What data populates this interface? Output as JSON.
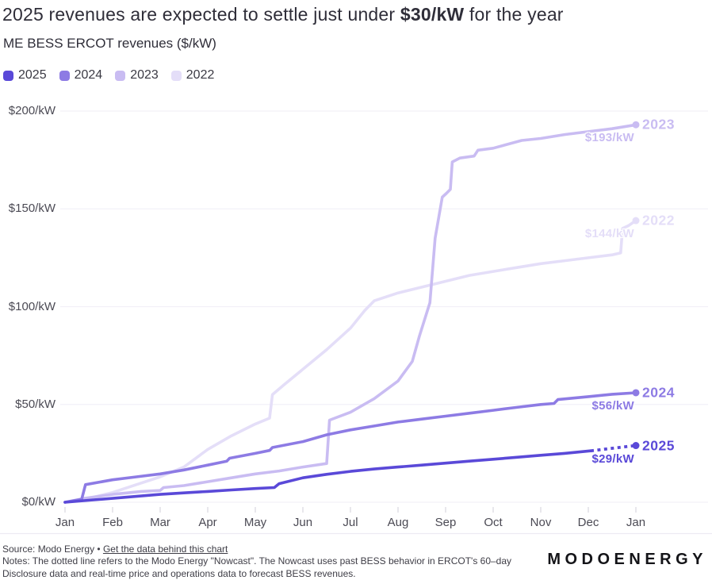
{
  "chart_data": {
    "type": "line",
    "title": {
      "prefix": "2025 revenues are expected to settle just under ",
      "highlight": "$30/kW",
      "suffix": " for the year"
    },
    "subtitle": "ME BESS ERCOT revenues ($/kW)",
    "x_unit": "month (0 = Jan, 12 = following Jan)",
    "x_ticks": [
      "Jan",
      "Feb",
      "Mar",
      "Apr",
      "May",
      "Jun",
      "Jul",
      "Aug",
      "Sep",
      "Oct",
      "Nov",
      "Dec",
      "Jan"
    ],
    "y_ticks": [
      {
        "value": 0,
        "label": "$0/kW"
      },
      {
        "value": 50,
        "label": "$50/kW"
      },
      {
        "value": 100,
        "label": "$100/kW"
      },
      {
        "value": 150,
        "label": "$150/kW"
      },
      {
        "value": 200,
        "label": "$200/kW"
      }
    ],
    "xlim": [
      0,
      12
    ],
    "ylim": [
      0,
      200
    ],
    "grid": "horizontal",
    "legend_position": "top-left",
    "series": [
      {
        "name": "2022",
        "color": "#e4def8",
        "end_value": 144,
        "end_value_label": "$144/kW",
        "points": [
          [
            0,
            0
          ],
          [
            0.5,
            2
          ],
          [
            1,
            5
          ],
          [
            1.5,
            9
          ],
          [
            2,
            13
          ],
          [
            2.5,
            18
          ],
          [
            3,
            27
          ],
          [
            3.5,
            34
          ],
          [
            4,
            40
          ],
          [
            4.3,
            43
          ],
          [
            4.36,
            55
          ],
          [
            4.6,
            60
          ],
          [
            5,
            68
          ],
          [
            5.5,
            78
          ],
          [
            6,
            89
          ],
          [
            6.3,
            98
          ],
          [
            6.5,
            103
          ],
          [
            7,
            107
          ],
          [
            7.5,
            110
          ],
          [
            8,
            113
          ],
          [
            8.5,
            116
          ],
          [
            9,
            118
          ],
          [
            9.5,
            120
          ],
          [
            10,
            122
          ],
          [
            10.5,
            123.5
          ],
          [
            11,
            125
          ],
          [
            11.5,
            126.5
          ],
          [
            11.68,
            127.5
          ],
          [
            11.72,
            140
          ],
          [
            11.85,
            141.5
          ],
          [
            12,
            144
          ]
        ]
      },
      {
        "name": "2023",
        "color": "#c9bcf2",
        "end_value": 193,
        "end_value_label": "$193/kW",
        "points": [
          [
            0,
            0
          ],
          [
            0.4,
            2
          ],
          [
            1,
            4
          ],
          [
            1.6,
            5.5
          ],
          [
            2,
            6
          ],
          [
            2.07,
            7.5
          ],
          [
            2.5,
            8.5
          ],
          [
            3,
            10.5
          ],
          [
            3.5,
            12.5
          ],
          [
            4,
            14.5
          ],
          [
            4.5,
            16
          ],
          [
            5,
            18
          ],
          [
            5.5,
            19.8
          ],
          [
            5.56,
            42
          ],
          [
            6,
            46
          ],
          [
            6.5,
            53
          ],
          [
            7,
            62
          ],
          [
            7.3,
            72
          ],
          [
            7.45,
            85
          ],
          [
            7.67,
            102
          ],
          [
            7.78,
            135
          ],
          [
            7.93,
            156
          ],
          [
            8.02,
            158
          ],
          [
            8.1,
            160
          ],
          [
            8.14,
            174
          ],
          [
            8.3,
            176
          ],
          [
            8.6,
            177
          ],
          [
            8.68,
            180
          ],
          [
            9,
            181
          ],
          [
            9.6,
            185
          ],
          [
            10,
            186
          ],
          [
            10.5,
            188
          ],
          [
            11,
            189.5
          ],
          [
            11.5,
            191
          ],
          [
            12,
            193
          ]
        ]
      },
      {
        "name": "2024",
        "color": "#8d7be4",
        "end_value": 56,
        "end_value_label": "$56/kW",
        "points": [
          [
            0,
            0
          ],
          [
            0.35,
            1.5
          ],
          [
            0.43,
            9
          ],
          [
            1,
            11.5
          ],
          [
            1.5,
            13
          ],
          [
            2,
            14.5
          ],
          [
            2.5,
            16.5
          ],
          [
            3,
            19
          ],
          [
            3.4,
            21
          ],
          [
            3.46,
            22.5
          ],
          [
            4,
            25
          ],
          [
            4.3,
            26.5
          ],
          [
            4.36,
            28
          ],
          [
            5,
            31
          ],
          [
            5.5,
            34.5
          ],
          [
            6,
            37
          ],
          [
            6.5,
            39
          ],
          [
            7,
            41
          ],
          [
            7.5,
            42.5
          ],
          [
            8,
            44
          ],
          [
            8.5,
            45.5
          ],
          [
            9,
            47
          ],
          [
            9.5,
            48.5
          ],
          [
            10,
            50
          ],
          [
            10.28,
            50.5
          ],
          [
            10.36,
            52.5
          ],
          [
            11,
            54
          ],
          [
            11.5,
            55.2
          ],
          [
            12,
            56
          ]
        ]
      },
      {
        "name": "2025",
        "color": "#5a49d8",
        "end_value": 29,
        "end_value_label": "$29/kW",
        "points": [
          [
            0,
            0
          ],
          [
            0.5,
            1
          ],
          [
            1,
            2
          ],
          [
            1.5,
            3
          ],
          [
            2,
            4
          ],
          [
            2.5,
            4.8
          ],
          [
            3,
            5.5
          ],
          [
            3.5,
            6.3
          ],
          [
            4,
            7
          ],
          [
            4.4,
            7.5
          ],
          [
            4.5,
            9.5
          ],
          [
            5,
            12.5
          ],
          [
            5.5,
            14.3
          ],
          [
            6,
            15.8
          ],
          [
            6.5,
            17
          ],
          [
            7,
            18
          ],
          [
            7.5,
            19
          ],
          [
            8,
            20
          ],
          [
            8.5,
            21
          ],
          [
            9,
            22
          ],
          [
            9.5,
            23
          ],
          [
            10,
            24
          ],
          [
            10.5,
            25
          ],
          [
            11.05,
            26.3
          ]
        ],
        "forecast_points": [
          [
            11.05,
            26.3
          ],
          [
            11.5,
            27.6
          ],
          [
            12,
            29
          ]
        ],
        "forecast_style": "dotted"
      }
    ]
  },
  "footer": {
    "source_prefix": "Source: Modo Energy • ",
    "source_link": "Get the data behind this chart",
    "notes": "Notes: The dotted line refers to the Modo Energy \"Nowcast\". The Nowcast uses past BESS behavior in ERCOT's 60–day Disclosure data and real-time price and operations data to forecast BESS revenues."
  },
  "logo": "MODOENERGY"
}
